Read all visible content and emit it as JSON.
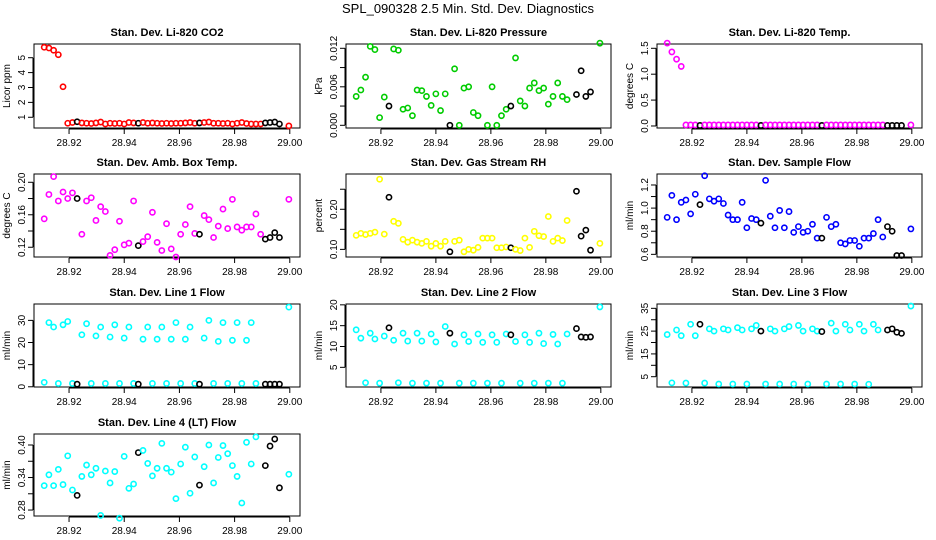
{
  "title": "SPL_090328  2.5 Min. Std. Dev. Diagnostics",
  "chart_data": {
    "type": "scatter",
    "x_start": 28.911,
    "x_step": 0.001705,
    "xlim": [
      28.9073,
      29.0037
    ],
    "x_ticks": [
      28.92,
      28.94,
      28.96,
      28.98,
      29.0
    ],
    "x_tick_labels": [
      "28.92",
      "28.94",
      "28.96",
      "28.98",
      "29.00"
    ],
    "highlight_color": "#000000",
    "highlight_indices": [
      7,
      20,
      33,
      47,
      48,
      49,
      50
    ],
    "panels": [
      {
        "title": "Stan. Dev. Li-820 CO2",
        "ylabel": "Licor ppm",
        "color": "#ff0000",
        "ylim": [
          0.28,
          5.92
        ],
        "y_ticks": [
          1,
          2,
          3,
          4,
          5
        ],
        "y_tick_labels": [
          "1",
          "2",
          "3",
          "4",
          "5"
        ],
        "y": [
          5.7,
          5.65,
          5.5,
          5.2,
          3.05,
          0.6,
          0.65,
          0.7,
          0.62,
          0.6,
          0.58,
          0.62,
          0.68,
          0.55,
          0.6,
          0.58,
          0.6,
          0.55,
          0.65,
          0.62,
          0.6,
          0.65,
          0.6,
          0.62,
          0.6,
          0.58,
          0.6,
          0.58,
          0.6,
          0.6,
          0.62,
          0.65,
          0.6,
          0.62,
          0.65,
          0.68,
          0.6,
          0.6,
          0.58,
          0.6,
          0.55,
          0.6,
          0.65,
          0.58,
          0.55,
          0.55,
          0.55,
          0.62,
          0.65,
          0.68,
          0.55,
          null,
          0.42
        ]
      },
      {
        "title": "Stan. Dev. Li-820 Pressure",
        "ylabel": "kPa",
        "color": "#00cc00",
        "ylim": [
          -0.00042,
          0.01267
        ],
        "y_ticks": [
          0,
          0.003,
          0.006,
          0.009,
          0.012
        ],
        "y_tick_labels": [
          "0.000",
          "",
          "0.006",
          "",
          "0.012"
        ],
        "y": [
          0.0045,
          0.0055,
          0.0075,
          0.0123,
          0.0118,
          0.0012,
          0.0044,
          0.003,
          0.0119,
          0.0117,
          0.0025,
          0.0027,
          0.0015,
          0.0055,
          0.0054,
          0.0045,
          0.0031,
          0.0049,
          0.0023,
          0.0049,
          0.0,
          0.0088,
          0.0,
          0.0058,
          0.006,
          0.002,
          0.0015,
          null,
          0.0,
          0.006,
          0.0,
          0.0015,
          0.0025,
          0.003,
          0.0105,
          0.0038,
          0.003,
          0.0058,
          0.0066,
          0.0054,
          0.0058,
          0.0033,
          0.0045,
          0.0066,
          0.0045,
          0.004,
          null,
          0.0048,
          0.0085,
          0.0045,
          0.0052,
          null,
          0.0128
        ]
      },
      {
        "title": "Stan. Dev. Li-820 Temp.",
        "ylabel": "degrees C",
        "color": "#ff00ff",
        "ylim": [
          -0.039,
          1.583
        ],
        "y_ticks": [
          0,
          0.5,
          1.0,
          1.5
        ],
        "y_tick_labels": [
          "0.0",
          "0.5",
          "1.0",
          "1.5"
        ],
        "y": [
          1.6,
          1.43,
          1.29,
          1.15,
          0.02,
          0.02,
          0.02,
          0.01,
          0.02,
          0.02,
          0.02,
          0.02,
          0.02,
          0.02,
          0.02,
          0.02,
          0.02,
          0.02,
          0.02,
          0.02,
          0.01,
          0.02,
          0.02,
          0.02,
          0.02,
          0.02,
          0.02,
          0.02,
          0.02,
          0.02,
          0.02,
          0.02,
          0.02,
          0.01,
          0.02,
          0.02,
          0.02,
          0.02,
          0.02,
          0.02,
          0.02,
          0.02,
          0.02,
          0.02,
          0.02,
          0.02,
          0.02,
          0.01,
          0.01,
          0.01,
          0.01,
          null,
          0.02
        ]
      },
      {
        "title": "Stan. Dev. Amb. Box Temp.",
        "ylabel": "degrees C",
        "color": "#ff00ff",
        "ylim": [
          0.108,
          0.2102
        ],
        "y_ticks": [
          0.12,
          0.14,
          0.16,
          0.18,
          0.2
        ],
        "y_tick_labels": [
          "0.12",
          "",
          "0.16",
          "",
          "0.20"
        ],
        "y": [
          0.155,
          0.185,
          0.207,
          0.177,
          0.188,
          0.18,
          0.187,
          0.18,
          0.136,
          0.177,
          0.181,
          0.153,
          0.17,
          0.164,
          0.11,
          0.117,
          0.152,
          0.123,
          0.125,
          0.177,
          0.122,
          0.127,
          0.133,
          0.163,
          0.126,
          0.116,
          0.149,
          0.118,
          0.108,
          0.136,
          0.148,
          0.17,
          0.137,
          0.136,
          0.159,
          0.154,
          0.132,
          0.146,
          0.167,
          0.143,
          0.179,
          0.145,
          0.141,
          0.145,
          0.145,
          0.161,
          0.136,
          0.13,
          0.132,
          0.138,
          0.132,
          null,
          0.179
        ]
      },
      {
        "title": "Stan. Dev. Gas Stream RH",
        "ylabel": "percent",
        "color": "#ffff00",
        "ylim": [
          0.081,
          0.288
        ],
        "y_ticks": [
          0.1,
          0.15,
          0.2,
          0.25
        ],
        "y_tick_labels": [
          "0.10",
          "",
          "0.20",
          ""
        ],
        "y": [
          0.135,
          0.14,
          0.137,
          0.14,
          0.143,
          0.275,
          0.138,
          0.23,
          0.17,
          0.165,
          0.125,
          0.118,
          0.123,
          0.118,
          0.115,
          0.12,
          0.108,
          0.115,
          0.108,
          0.12,
          0.094,
          0.12,
          0.123,
          0.094,
          0.1,
          0.098,
          0.105,
          0.128,
          0.128,
          0.128,
          0.104,
          0.104,
          0.106,
          0.104,
          0.1,
          0.097,
          0.128,
          0.105,
          0.145,
          0.134,
          0.132,
          0.182,
          0.12,
          0.128,
          0.122,
          0.172,
          null,
          0.245,
          0.133,
          0.148,
          0.098,
          null,
          0.115
        ]
      },
      {
        "title": "Stan. Dev. Sample Flow",
        "ylabel": "ml/min",
        "color": "#0000ff",
        "ylim": [
          0.577,
          1.295
        ],
        "y_ticks": [
          0.6,
          0.7,
          0.8,
          0.9,
          1.0,
          1.1,
          1.2
        ],
        "y_tick_labels": [
          "0.6",
          "",
          "0.8",
          "",
          "1.0",
          "",
          "1.2"
        ],
        "y": [
          0.92,
          1.11,
          0.9,
          1.05,
          1.07,
          0.95,
          1.12,
          1.03,
          1.28,
          1.08,
          1.06,
          1.08,
          1.04,
          0.94,
          0.9,
          0.9,
          1.05,
          0.83,
          0.91,
          0.9,
          0.87,
          1.24,
          0.93,
          0.83,
          0.98,
          0.83,
          0.97,
          0.79,
          0.84,
          0.79,
          0.8,
          0.86,
          0.74,
          0.74,
          0.92,
          0.84,
          0.86,
          0.7,
          0.69,
          0.72,
          0.72,
          0.67,
          0.74,
          0.74,
          0.78,
          0.9,
          0.75,
          0.84,
          0.8,
          0.59,
          0.59,
          null,
          0.82
        ]
      },
      {
        "title": "Stan. Dev. Line 1 Flow",
        "ylabel": "ml/min",
        "color": "#00ffff",
        "ylim": [
          -0.1,
          37.4
        ],
        "y_ticks": [
          0,
          10,
          20,
          30
        ],
        "y_tick_labels": [
          "0",
          "10",
          "20",
          "30"
        ],
        "y": [
          2,
          29,
          27,
          1.5,
          28,
          29.5,
          1.5,
          1.2,
          23.5,
          28.5,
          1.5,
          23,
          27,
          1.5,
          22.5,
          28,
          1.5,
          22,
          27,
          1.5,
          1.2,
          21.5,
          27,
          1.5,
          21.5,
          27,
          1.5,
          21.5,
          29,
          1.5,
          21.5,
          27,
          1.5,
          1.2,
          22,
          30,
          1.5,
          20.5,
          29,
          1.5,
          21,
          29,
          1.5,
          21,
          29,
          1.5,
          null,
          1.2,
          1.2,
          1.2,
          1.2,
          null,
          36
        ]
      },
      {
        "title": "Stan. Dev. Line 2 Flow",
        "ylabel": "ml/min",
        "color": "#00ffff",
        "ylim": [
          0.28,
          20.2
        ],
        "y_ticks": [
          5,
          10,
          15,
          20
        ],
        "y_tick_labels": [
          "5",
          "10",
          "15",
          "20"
        ],
        "y": [
          14,
          12,
          1.3,
          13.2,
          11.8,
          1.2,
          12.5,
          14.5,
          11.5,
          1.3,
          13.2,
          11.3,
          1.2,
          13.2,
          11.3,
          1.2,
          13,
          11.1,
          1.2,
          14.8,
          13.2,
          10.6,
          1.2,
          12.8,
          11.2,
          1.2,
          13,
          11,
          1.2,
          12.8,
          11,
          1.2,
          13,
          12.8,
          11.2,
          1.2,
          12.8,
          11,
          1.2,
          13.2,
          10.7,
          1.2,
          12.9,
          10.6,
          1.2,
          13,
          null,
          14.3,
          12.3,
          12.2,
          12.3,
          null,
          19.5
        ]
      },
      {
        "title": "Stan. Dev. Line 3 Flow",
        "ylabel": "ml/min",
        "color": "#00ffff",
        "ylim": [
          0.48,
          36.9
        ],
        "y_ticks": [
          5,
          10,
          15,
          20,
          25,
          30,
          35
        ],
        "y_tick_labels": [
          "5",
          "",
          "15",
          "",
          "25",
          "",
          "35"
        ],
        "y": [
          23.5,
          2.3,
          25.5,
          23,
          2.2,
          28,
          23,
          28,
          2.2,
          26,
          25,
          1.8,
          26,
          25.5,
          1.8,
          26.5,
          25.5,
          1.8,
          26,
          27.5,
          25,
          1.8,
          26,
          25,
          1.8,
          26,
          27,
          1.8,
          27.5,
          25,
          1.8,
          26,
          25,
          24.8,
          1.8,
          28.5,
          25,
          1.8,
          28,
          25.5,
          1.8,
          28,
          25,
          1.7,
          28,
          25.5,
          null,
          25.5,
          26,
          24.5,
          24,
          null,
          36
        ]
      },
      {
        "title": "Stan. Dev. Line 4 (LT) Flow",
        "ylabel": "ml/min",
        "color": "#00ffff",
        "ylim": [
          0.269,
          0.4203
        ],
        "y_ticks": [
          0.28,
          0.31,
          0.34,
          0.37,
          0.4
        ],
        "y_tick_labels": [
          "0.28",
          "",
          "0.34",
          "",
          "0.40"
        ],
        "y": [
          0.325,
          0.345,
          0.325,
          0.355,
          0.327,
          0.38,
          0.317,
          0.307,
          0.342,
          0.363,
          0.345,
          0.357,
          0.27,
          0.352,
          0.33,
          0.351,
          0.265,
          0.379,
          0.32,
          0.328,
          0.386,
          0.39,
          0.366,
          0.343,
          0.357,
          0.403,
          0.357,
          0.35,
          0.301,
          0.365,
          0.396,
          0.311,
          0.378,
          0.326,
          0.36,
          0.4,
          0.33,
          0.377,
          0.399,
          0.384,
          0.362,
          0.342,
          0.293,
          0.405,
          0.365,
          0.415,
          null,
          0.362,
          0.398,
          0.411,
          0.321,
          null,
          0.346
        ]
      }
    ]
  }
}
